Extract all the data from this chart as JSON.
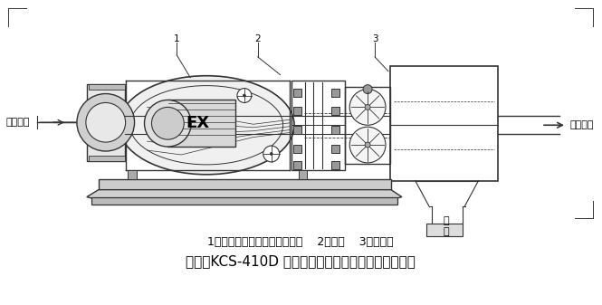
{
  "bg_color": "#ffffff",
  "line_color": "#333333",
  "caption_line1": "1、抽出式轴流防爆局部通风机    2、机架    3、捕尘器",
  "caption_line2": "图四：KCS-410D 系列掘进机用除尘风机结构示意图。",
  "label_left": "含尘空气",
  "label_right": "洁净空气",
  "label_water": "污\n水",
  "font_caption1": 9,
  "font_caption2": 11,
  "font_label": 8
}
